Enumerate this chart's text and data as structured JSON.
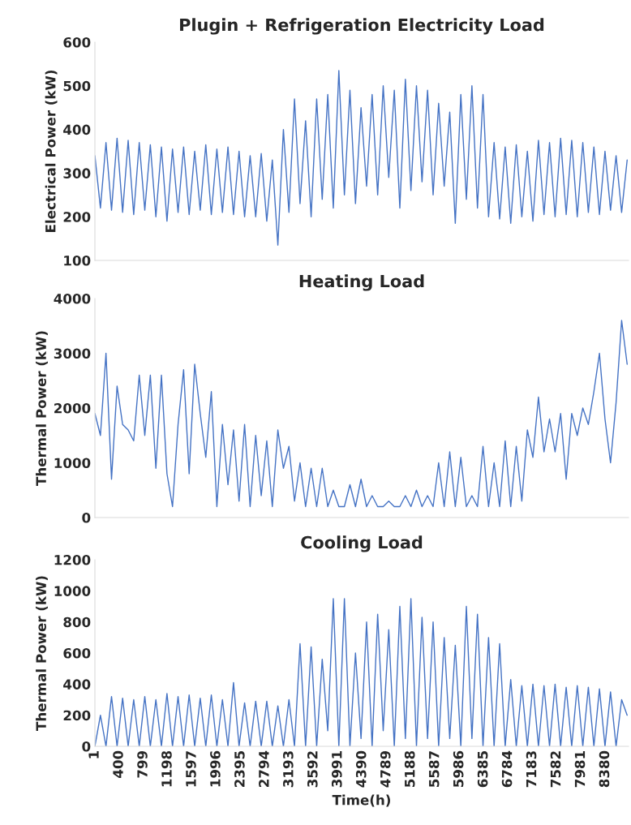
{
  "chart_data": [
    {
      "type": "line",
      "title": "Plugin + Refrigeration Electricity Load",
      "ylabel": "Electrical Power (kW)",
      "tick_labels": "y",
      "x": [
        1,
        92,
        183,
        274,
        365,
        456,
        547,
        638,
        729,
        820,
        911,
        1002,
        1093,
        1184,
        1275,
        1366,
        1457,
        1548,
        1639,
        1730,
        1821,
        1912,
        2003,
        2094,
        2185,
        2276,
        2367,
        2458,
        2549,
        2640,
        2731,
        2822,
        2913,
        3004,
        3095,
        3186,
        3277,
        3368,
        3459,
        3550,
        3641,
        3732,
        3823,
        3914,
        4005,
        4096,
        4187,
        4278,
        4369,
        4460,
        4551,
        4642,
        4733,
        4824,
        4915,
        5006,
        5097,
        5188,
        5279,
        5370,
        5461,
        5552,
        5643,
        5734,
        5825,
        5916,
        6007,
        6098,
        6189,
        6280,
        6371,
        6462,
        6553,
        6644,
        6735,
        6826,
        6917,
        7008,
        7099,
        7190,
        7281,
        7372,
        7463,
        7554,
        7645,
        7736,
        7827,
        7918,
        8009,
        8100,
        8191,
        8282,
        8373,
        8464,
        8555,
        8646,
        8737
      ],
      "series": [
        {
          "color": "#4472c4",
          "values": [
            340,
            220,
            370,
            215,
            380,
            210,
            375,
            205,
            370,
            215,
            365,
            200,
            360,
            190,
            355,
            210,
            360,
            205,
            350,
            215,
            365,
            205,
            355,
            210,
            360,
            205,
            350,
            200,
            340,
            200,
            345,
            190,
            330,
            135,
            400,
            210,
            470,
            230,
            420,
            200,
            470,
            240,
            480,
            220,
            535,
            250,
            490,
            230,
            450,
            270,
            480,
            250,
            500,
            290,
            490,
            220,
            515,
            260,
            500,
            280,
            490,
            250,
            460,
            270,
            440,
            185,
            480,
            240,
            500,
            220,
            480,
            200,
            370,
            195,
            360,
            185,
            365,
            200,
            350,
            190,
            375,
            205,
            370,
            200,
            380,
            205,
            375,
            200,
            370,
            210,
            360,
            205,
            350,
            215,
            340,
            210,
            330
          ]
        }
      ],
      "xlim": [
        1,
        8760
      ],
      "ylim": [
        100,
        600
      ],
      "yticks": [
        100,
        200,
        300,
        400,
        500,
        600
      ],
      "grid": false
    },
    {
      "type": "line",
      "title": "Heating Load",
      "ylabel": "Thermal Power (kW)",
      "tick_labels": "y",
      "x": [
        1,
        92,
        183,
        274,
        365,
        456,
        547,
        638,
        729,
        820,
        911,
        1002,
        1093,
        1184,
        1275,
        1366,
        1457,
        1548,
        1639,
        1730,
        1821,
        1912,
        2003,
        2094,
        2185,
        2276,
        2367,
        2458,
        2549,
        2640,
        2731,
        2822,
        2913,
        3004,
        3095,
        3186,
        3277,
        3368,
        3459,
        3550,
        3641,
        3732,
        3823,
        3914,
        4005,
        4096,
        4187,
        4278,
        4369,
        4460,
        4551,
        4642,
        4733,
        4824,
        4915,
        5006,
        5097,
        5188,
        5279,
        5370,
        5461,
        5552,
        5643,
        5734,
        5825,
        5916,
        6007,
        6098,
        6189,
        6280,
        6371,
        6462,
        6553,
        6644,
        6735,
        6826,
        6917,
        7008,
        7099,
        7190,
        7281,
        7372,
        7463,
        7554,
        7645,
        7736,
        7827,
        7918,
        8009,
        8100,
        8191,
        8282,
        8373,
        8464,
        8555,
        8646,
        8737
      ],
      "series": [
        {
          "color": "#4472c4",
          "values": [
            1900,
            1500,
            3000,
            700,
            2400,
            1700,
            1600,
            1400,
            2600,
            1500,
            2600,
            900,
            2600,
            800,
            200,
            1700,
            2700,
            800,
            2800,
            1900,
            1100,
            2300,
            200,
            1700,
            600,
            1600,
            300,
            1700,
            200,
            1500,
            400,
            1400,
            200,
            1600,
            900,
            1300,
            300,
            1000,
            200,
            900,
            200,
            900,
            200,
            500,
            200,
            200,
            600,
            200,
            700,
            200,
            400,
            200,
            200,
            300,
            200,
            200,
            400,
            200,
            500,
            200,
            400,
            200,
            1000,
            200,
            1200,
            200,
            1100,
            200,
            400,
            200,
            1300,
            200,
            1000,
            200,
            1400,
            200,
            1300,
            300,
            1600,
            1100,
            2200,
            1200,
            1800,
            1200,
            1900,
            700,
            1900,
            1500,
            2000,
            1700,
            2300,
            3000,
            1800,
            1000,
            2100,
            3600,
            2800
          ]
        }
      ],
      "xlim": [
        1,
        8760
      ],
      "ylim": [
        0,
        4000
      ],
      "yticks": [
        0,
        1000,
        2000,
        3000,
        4000
      ],
      "grid": false
    },
    {
      "type": "line",
      "title": "Cooling Load",
      "ylabel": "Thermal Power (kW)",
      "xlabel": "Time(h)",
      "x": [
        1,
        92,
        183,
        274,
        365,
        456,
        547,
        638,
        729,
        820,
        911,
        1002,
        1093,
        1184,
        1275,
        1366,
        1457,
        1548,
        1639,
        1730,
        1821,
        1912,
        2003,
        2094,
        2185,
        2276,
        2367,
        2458,
        2549,
        2640,
        2731,
        2822,
        2913,
        3004,
        3095,
        3186,
        3277,
        3368,
        3459,
        3550,
        3641,
        3732,
        3823,
        3914,
        4005,
        4096,
        4187,
        4278,
        4369,
        4460,
        4551,
        4642,
        4733,
        4824,
        4915,
        5006,
        5097,
        5188,
        5279,
        5370,
        5461,
        5552,
        5643,
        5734,
        5825,
        5916,
        6007,
        6098,
        6189,
        6280,
        6371,
        6462,
        6553,
        6644,
        6735,
        6826,
        6917,
        7008,
        7099,
        7190,
        7281,
        7372,
        7463,
        7554,
        7645,
        7736,
        7827,
        7918,
        8009,
        8100,
        8191,
        8282,
        8373,
        8464,
        8555,
        8646,
        8737
      ],
      "series": [
        {
          "color": "#4472c4",
          "values": [
            0,
            200,
            0,
            320,
            0,
            310,
            0,
            300,
            0,
            320,
            0,
            300,
            0,
            340,
            0,
            320,
            0,
            330,
            0,
            310,
            0,
            330,
            0,
            300,
            0,
            410,
            0,
            280,
            0,
            290,
            0,
            290,
            0,
            260,
            0,
            300,
            0,
            660,
            0,
            640,
            0,
            560,
            100,
            950,
            0,
            950,
            0,
            600,
            50,
            800,
            0,
            850,
            100,
            750,
            0,
            900,
            50,
            950,
            0,
            830,
            50,
            800,
            0,
            700,
            50,
            650,
            0,
            900,
            50,
            850,
            0,
            700,
            0,
            660,
            0,
            430,
            0,
            390,
            0,
            400,
            0,
            390,
            0,
            400,
            0,
            380,
            0,
            390,
            0,
            380,
            0,
            370,
            0,
            350,
            0,
            300,
            200
          ]
        }
      ],
      "xlim": [
        1,
        8760
      ],
      "xticks": [
        1,
        400,
        799,
        1198,
        1597,
        1996,
        2395,
        2794,
        3193,
        3592,
        3991,
        4390,
        4789,
        5188,
        5587,
        5986,
        6385,
        6784,
        7183,
        7582,
        7981,
        8380
      ],
      "ylim": [
        0,
        1200
      ],
      "yticks": [
        0,
        200,
        400,
        600,
        800,
        1000,
        1200
      ],
      "grid": false
    }
  ]
}
